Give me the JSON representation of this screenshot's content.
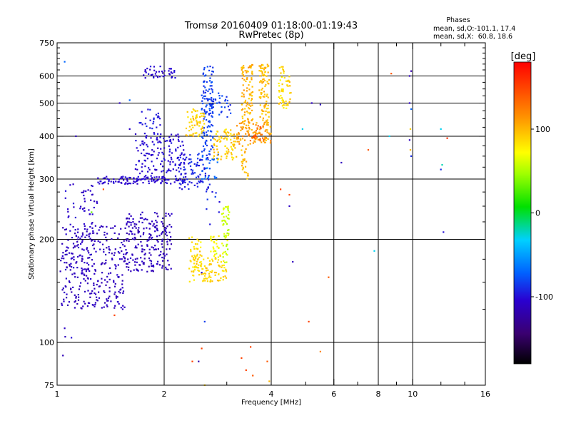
{
  "title_line1": "Tromsø 20160409 01:18:00-01:19:43",
  "title_line2": "RwPretec (8p)",
  "phases_box": {
    "heading": "Phases",
    "line1": "mean, sd,O:-101.1, 17.4",
    "line2": "mean, sd,X:  60.8, 18.6"
  },
  "colorbar": {
    "unit_label": "[deg]",
    "range": [
      -180,
      180
    ],
    "ticks": [
      {
        "value": 100,
        "label": "100"
      },
      {
        "value": 0,
        "label": "0"
      },
      {
        "value": -100,
        "label": "-100"
      }
    ]
  },
  "chart_data": {
    "type": "scatter",
    "title": "Tromsø 20160409 01:18:00-01:19:43",
    "subtitle": "RwPretec (8p)",
    "xlabel": "Frequency [MHz]",
    "ylabel": "Stationary phase Virtual Height [km]",
    "x_scale": "log",
    "y_scale": "log",
    "xlim": [
      1,
      16
    ],
    "ylim": [
      75,
      750
    ],
    "grid": true,
    "x_ticks": [
      {
        "value": 1,
        "label": "1"
      },
      {
        "value": 2,
        "label": "2"
      },
      {
        "value": 4,
        "label": "4"
      },
      {
        "value": 6,
        "label": "6"
      },
      {
        "value": 8,
        "label": "8"
      },
      {
        "value": 10,
        "label": "10"
      },
      {
        "value": 16,
        "label": "16"
      }
    ],
    "x_minor_ticks": [
      3,
      5,
      7,
      9,
      12,
      14
    ],
    "y_ticks": [
      {
        "value": 75,
        "label": "75"
      },
      {
        "value": 100,
        "label": "100"
      },
      {
        "value": 200,
        "label": "200"
      },
      {
        "value": 300,
        "label": "300"
      },
      {
        "value": 400,
        "label": "400"
      },
      {
        "value": 500,
        "label": "500"
      },
      {
        "value": 600,
        "label": "600"
      },
      {
        "value": 750,
        "label": "750"
      }
    ],
    "y_minor_ticks": [
      125,
      150,
      175,
      225,
      250,
      275,
      325,
      350,
      375,
      425,
      450,
      475,
      525,
      550,
      575,
      625,
      650,
      675,
      700,
      725
    ],
    "vertical_grid_x": [
      2,
      4,
      6,
      8,
      10
    ],
    "horizontal_grid_y": [
      100,
      200,
      300,
      400,
      500,
      600
    ],
    "color_encoding": "phase [deg]",
    "clusters": [
      {
        "x": [
          1.02,
          1.55
        ],
        "y": [
          125,
          220
        ],
        "phase": -112,
        "spread": 6,
        "count": 300
      },
      {
        "x": [
          1.55,
          2.1
        ],
        "y": [
          160,
          240
        ],
        "phase": -113,
        "spread": 6,
        "count": 220
      },
      {
        "x": [
          1.04,
          1.3
        ],
        "y": [
          175,
          290
        ],
        "phase": -108,
        "spread": 8,
        "count": 70
      },
      {
        "x": [
          1.3,
          2.3
        ],
        "y": [
          290,
          305
        ],
        "phase": -105,
        "spread": 6,
        "count": 110
      },
      {
        "x": [
          1.65,
          2.3
        ],
        "y": [
          305,
          410
        ],
        "phase": -103,
        "spread": 7,
        "count": 140
      },
      {
        "x": [
          1.75,
          2.15
        ],
        "y": [
          590,
          640
        ],
        "phase": -105,
        "spread": 6,
        "count": 40
      },
      {
        "x": [
          1.7,
          1.95
        ],
        "y": [
          420,
          480
        ],
        "phase": -98,
        "spread": 8,
        "count": 25
      },
      {
        "x": [
          2.2,
          2.7
        ],
        "y": [
          280,
          360
        ],
        "phase": -94,
        "spread": 8,
        "count": 90
      },
      {
        "x": [
          2.55,
          2.75
        ],
        "y": [
          360,
          640
        ],
        "phase": -82,
        "spread": 9,
        "count": 120
      },
      {
        "x": [
          2.7,
          3.1
        ],
        "y": [
          450,
          540
        ],
        "phase": -85,
        "spread": 9,
        "count": 30
      },
      {
        "x": [
          2.55,
          2.85
        ],
        "y": [
          300,
          360
        ],
        "phase": -72,
        "spread": 10,
        "count": 25
      },
      {
        "x": [
          2.6,
          2.9
        ],
        "y": [
          220,
          280
        ],
        "phase": -90,
        "spread": 10,
        "count": 10
      },
      {
        "x": [
          2.3,
          2.6
        ],
        "y": [
          400,
          480
        ],
        "phase": 90,
        "spread": 12,
        "count": 60
      },
      {
        "x": [
          2.75,
          3.2
        ],
        "y": [
          340,
          420
        ],
        "phase": 92,
        "spread": 12,
        "count": 80
      },
      {
        "x": [
          3.2,
          4.0
        ],
        "y": [
          380,
          440
        ],
        "phase": 110,
        "spread": 14,
        "count": 100
      },
      {
        "x": [
          3.3,
          3.55
        ],
        "y": [
          440,
          650
        ],
        "phase": 102,
        "spread": 12,
        "count": 90
      },
      {
        "x": [
          3.7,
          3.95
        ],
        "y": [
          430,
          650
        ],
        "phase": 98,
        "spread": 12,
        "count": 90
      },
      {
        "x": [
          4.2,
          4.55
        ],
        "y": [
          480,
          640
        ],
        "phase": 88,
        "spread": 12,
        "count": 60
      },
      {
        "x": [
          3.3,
          3.45
        ],
        "y": [
          300,
          380
        ],
        "phase": 98,
        "spread": 10,
        "count": 25
      },
      {
        "x": [
          3.55,
          3.85
        ],
        "y": [
          390,
          430
        ],
        "phase": 140,
        "spread": 15,
        "count": 20
      },
      {
        "x": [
          2.35,
          3.0
        ],
        "y": [
          150,
          180
        ],
        "phase": 88,
        "spread": 10,
        "count": 100
      },
      {
        "x": [
          2.35,
          2.55
        ],
        "y": [
          160,
          205
        ],
        "phase": 85,
        "spread": 10,
        "count": 40
      },
      {
        "x": [
          2.7,
          2.85
        ],
        "y": [
          170,
          205
        ],
        "phase": 72,
        "spread": 10,
        "count": 25
      },
      {
        "x": [
          2.9,
          3.05
        ],
        "y": [
          170,
          250
        ],
        "phase": 58,
        "spread": 10,
        "count": 50
      },
      {
        "x": [
          1.0,
          1.1
        ],
        "y": [
          90,
          130
        ],
        "phase": -110,
        "spread": 8,
        "count": 3
      }
    ],
    "isolated_points": [
      {
        "x": 1.05,
        "y": 660,
        "phase": -70
      },
      {
        "x": 1.13,
        "y": 400,
        "phase": -112
      },
      {
        "x": 1.05,
        "y": 110,
        "phase": -110
      },
      {
        "x": 1.25,
        "y": 240,
        "phase": 30
      },
      {
        "x": 1.35,
        "y": 280,
        "phase": 140
      },
      {
        "x": 1.45,
        "y": 120,
        "phase": 150
      },
      {
        "x": 1.5,
        "y": 500,
        "phase": -112
      },
      {
        "x": 1.6,
        "y": 510,
        "phase": -70
      },
      {
        "x": 1.6,
        "y": 420,
        "phase": -108
      },
      {
        "x": 2.4,
        "y": 88,
        "phase": 150
      },
      {
        "x": 2.5,
        "y": 88,
        "phase": -120
      },
      {
        "x": 2.55,
        "y": 96,
        "phase": 150
      },
      {
        "x": 2.6,
        "y": 75,
        "phase": 90
      },
      {
        "x": 2.55,
        "y": 160,
        "phase": -110
      },
      {
        "x": 2.6,
        "y": 115,
        "phase": -85
      },
      {
        "x": 3.05,
        "y": 240,
        "phase": 60
      },
      {
        "x": 3.3,
        "y": 90,
        "phase": 150
      },
      {
        "x": 3.4,
        "y": 83,
        "phase": 150
      },
      {
        "x": 3.5,
        "y": 97,
        "phase": 150
      },
      {
        "x": 3.55,
        "y": 80,
        "phase": 140
      },
      {
        "x": 3.9,
        "y": 88,
        "phase": 140
      },
      {
        "x": 3.95,
        "y": 77,
        "phase": 100
      },
      {
        "x": 4.25,
        "y": 280,
        "phase": 150
      },
      {
        "x": 4.5,
        "y": 270,
        "phase": 150
      },
      {
        "x": 4.5,
        "y": 250,
        "phase": -110
      },
      {
        "x": 4.6,
        "y": 172,
        "phase": -112
      },
      {
        "x": 4.9,
        "y": 420,
        "phase": -30
      },
      {
        "x": 5.1,
        "y": 115,
        "phase": 150
      },
      {
        "x": 5.2,
        "y": 500,
        "phase": -110
      },
      {
        "x": 5.5,
        "y": 94,
        "phase": 120
      },
      {
        "x": 5.5,
        "y": 495,
        "phase": -112
      },
      {
        "x": 5.8,
        "y": 155,
        "phase": 140
      },
      {
        "x": 6.3,
        "y": 335,
        "phase": -112
      },
      {
        "x": 7.5,
        "y": 365,
        "phase": 140
      },
      {
        "x": 7.8,
        "y": 185,
        "phase": -30
      },
      {
        "x": 8.6,
        "y": 400,
        "phase": -30
      },
      {
        "x": 8.7,
        "y": 610,
        "phase": 140
      },
      {
        "x": 9.8,
        "y": 600,
        "phase": -112
      },
      {
        "x": 9.9,
        "y": 620,
        "phase": -120
      },
      {
        "x": 9.8,
        "y": 500,
        "phase": -110
      },
      {
        "x": 9.9,
        "y": 480,
        "phase": -70
      },
      {
        "x": 9.85,
        "y": 420,
        "phase": 90
      },
      {
        "x": 9.8,
        "y": 390,
        "phase": -112
      },
      {
        "x": 9.85,
        "y": 365,
        "phase": 100
      },
      {
        "x": 9.9,
        "y": 350,
        "phase": -90
      },
      {
        "x": 12.0,
        "y": 420,
        "phase": -30
      },
      {
        "x": 12.1,
        "y": 330,
        "phase": -20
      },
      {
        "x": 12.0,
        "y": 320,
        "phase": -90
      },
      {
        "x": 12.2,
        "y": 210,
        "phase": -100
      },
      {
        "x": 12.5,
        "y": 395,
        "phase": 160
      }
    ]
  }
}
